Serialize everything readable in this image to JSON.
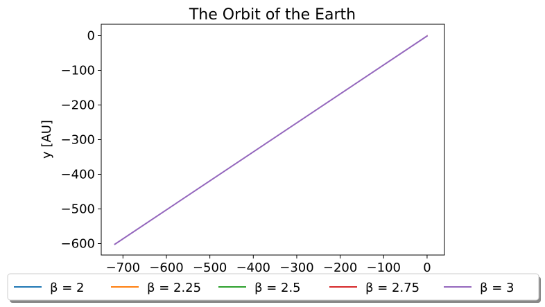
{
  "chart_data": {
    "type": "line",
    "title": "The Orbit of the Earth",
    "xlabel": "",
    "ylabel": "y [AU]",
    "xlim": [
      -750,
      40
    ],
    "ylim": [
      -633,
      33
    ],
    "xticks": [
      -700,
      -600,
      -500,
      -400,
      -300,
      -200,
      -100,
      0
    ],
    "yticks": [
      0,
      -100,
      -200,
      -300,
      -400,
      -500,
      -600
    ],
    "xtick_labels": [
      "−700",
      "−600",
      "−500",
      "−400",
      "−300",
      "−200",
      "−100",
      "0"
    ],
    "ytick_labels": [
      "0",
      "−100",
      "−200",
      "−300",
      "−400",
      "−500",
      "−600"
    ],
    "grid": false,
    "legend_position": "bottom-center",
    "series": [
      {
        "name": "β = 2",
        "color": "#1f77b4",
        "x": [
          1,
          0
        ],
        "y": [
          0,
          0
        ]
      },
      {
        "name": "β = 2.25",
        "color": "#ff7f0e",
        "x": [
          1,
          0
        ],
        "y": [
          0,
          0
        ]
      },
      {
        "name": "β = 2.5",
        "color": "#2ca02c",
        "x": [
          1,
          0
        ],
        "y": [
          0,
          0
        ]
      },
      {
        "name": "β = 2.75",
        "color": "#d62728",
        "x": [
          1,
          0
        ],
        "y": [
          0,
          0
        ]
      },
      {
        "name": "β = 3",
        "color": "#9467bd",
        "x": [
          1,
          -720
        ],
        "y": [
          0,
          -603
        ]
      }
    ]
  }
}
